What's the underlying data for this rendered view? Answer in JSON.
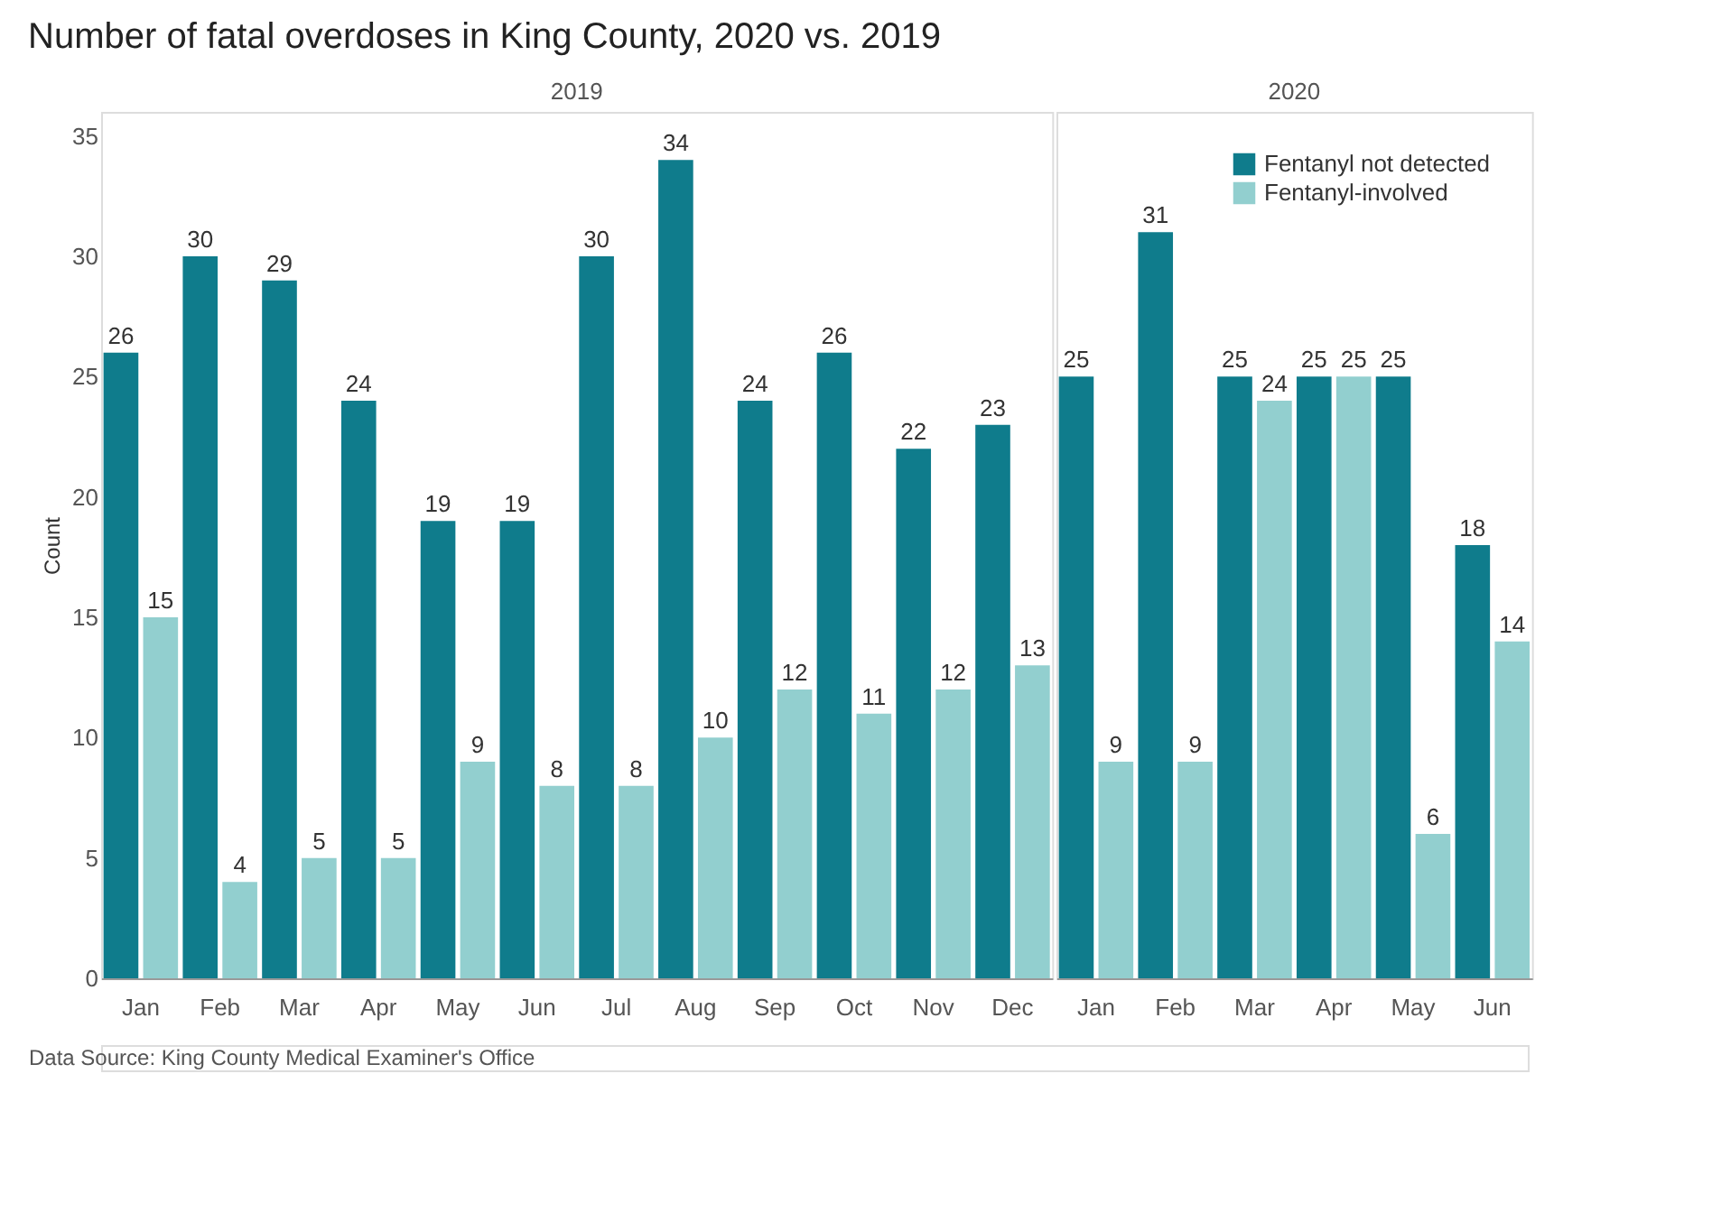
{
  "chart_data": [
    {
      "type": "bar",
      "title": "Number of fatal overdoses in King County, 2020 vs. 2019",
      "subtitle": "2019",
      "ylabel": "Count",
      "categories": [
        "Jan",
        "Feb",
        "Mar",
        "Apr",
        "May",
        "Jun",
        "Jul",
        "Aug",
        "Sep",
        "Oct",
        "Nov",
        "Dec"
      ],
      "series": [
        {
          "name": "Fentanyl not detected",
          "color": "#0f7c8c",
          "values": [
            26,
            30,
            29,
            24,
            19,
            19,
            30,
            34,
            24,
            26,
            22,
            23
          ]
        },
        {
          "name": "Fentanyl-involved",
          "color": "#92cfcf",
          "values": [
            15,
            4,
            5,
            5,
            9,
            8,
            8,
            10,
            12,
            11,
            12,
            13
          ]
        }
      ],
      "ylim": [
        0,
        36
      ],
      "yticks": [
        0,
        5,
        10,
        15,
        20,
        25,
        30,
        35
      ],
      "grid": false,
      "data_labels": true,
      "legend": "top right",
      "annotations": [
        "Data Source: King County Medical Examiner's Office"
      ]
    },
    {
      "type": "bar",
      "subtitle": "2020",
      "categories": [
        "Jan",
        "Feb",
        "Mar",
        "Apr",
        "May",
        "Jun"
      ],
      "series": [
        {
          "color": "#0f7c8c",
          "values": [
            25,
            31,
            25,
            25,
            25,
            18
          ]
        },
        {
          "color": "#92cfcf",
          "values": [
            9,
            9,
            24,
            25,
            6,
            14
          ]
        }
      ],
      "ylim": [
        0,
        36
      ],
      "yticks": [
        0,
        5,
        10,
        15,
        20,
        25,
        30,
        35
      ],
      "grid": false,
      "data_labels": true,
      "tick_labels": "x"
    }
  ]
}
